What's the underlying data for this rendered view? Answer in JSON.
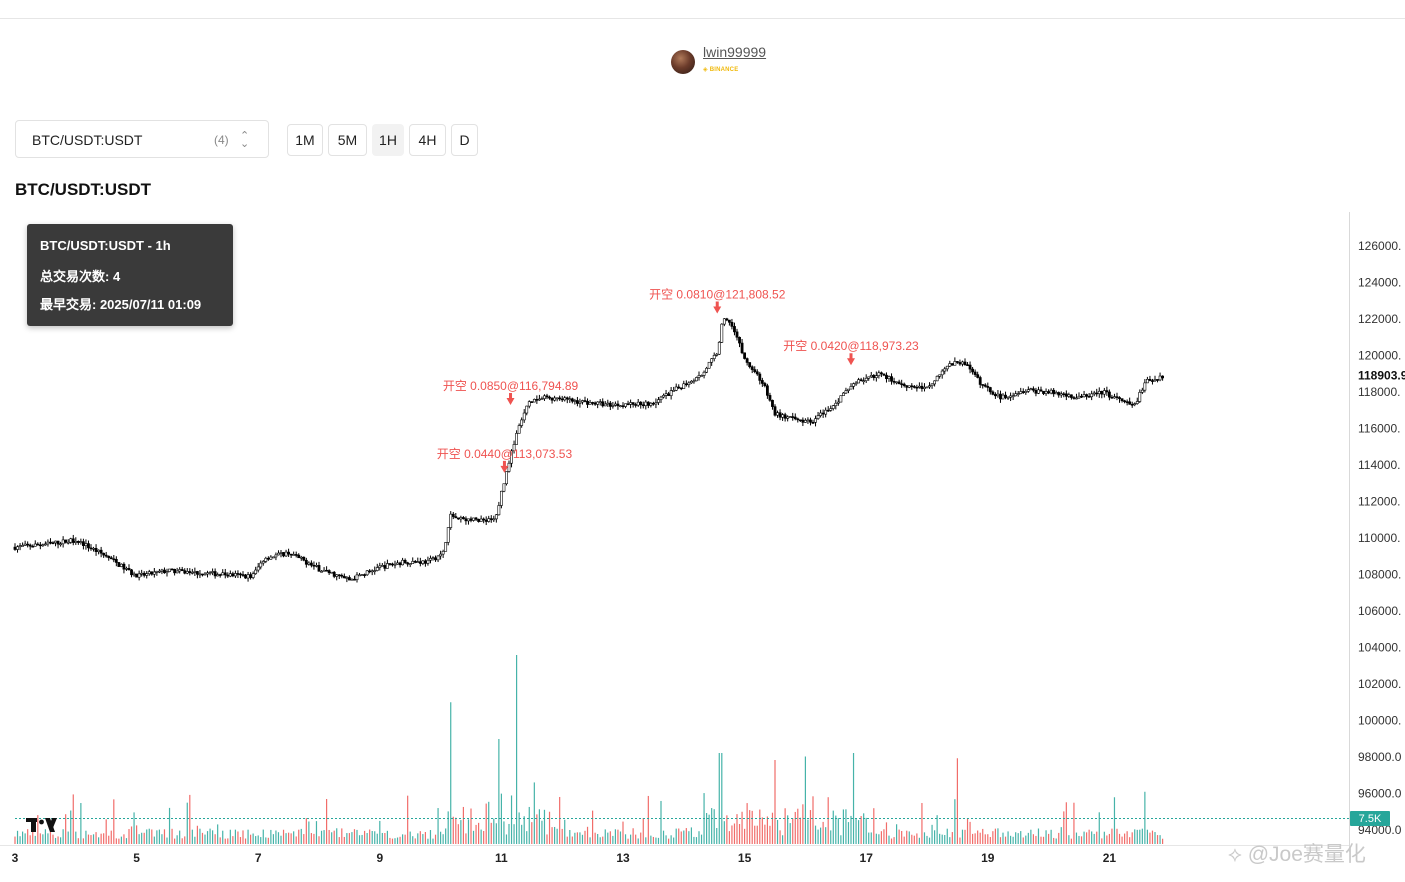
{
  "user": {
    "name": "lwin99999",
    "exchange": "BINANCE"
  },
  "symbol_select": {
    "value": "BTC/USDT:USDT",
    "count": "(4)"
  },
  "timeframes": [
    {
      "label": "1M",
      "active": false
    },
    {
      "label": "5M",
      "active": false
    },
    {
      "label": "1H",
      "active": true
    },
    {
      "label": "4H",
      "active": false
    },
    {
      "label": "D",
      "active": false
    }
  ],
  "page_title": "BTC/USDT:USDT",
  "tooltip": {
    "line1": "BTC/USDT:USDT - 1h",
    "line2": "总交易次数: 4",
    "line3": "最早交易: 2025/07/11 01:09"
  },
  "watermark": "@Joe赛量化",
  "colors": {
    "up_volume": "#26a69a",
    "down_volume": "#ef5350",
    "marker": "#ef5350",
    "price_badge": "#111111",
    "volume_badge": "#26a69a"
  },
  "chart_data": {
    "type": "candlestick",
    "interval": "1h",
    "x_tick_labels": [
      "3",
      "5",
      "7",
      "9",
      "11",
      "13",
      "15",
      "17",
      "19",
      "21"
    ],
    "y_tick_labels": [
      "126000.",
      "124000.",
      "122000.",
      "120000.",
      "118000.",
      "116000.",
      "114000.",
      "112000.",
      "110000.",
      "108000.",
      "106000.",
      "104000.",
      "102000.",
      "100000.",
      "98000.0",
      "96000.0",
      "94000.0"
    ],
    "ylim": [
      93600,
      127000
    ],
    "price_path": [
      {
        "day": 3.0,
        "price": 109500
      },
      {
        "day": 3.6,
        "price": 109700
      },
      {
        "day": 4.0,
        "price": 109900
      },
      {
        "day": 4.5,
        "price": 109000
      },
      {
        "day": 5.0,
        "price": 107900
      },
      {
        "day": 5.5,
        "price": 108200
      },
      {
        "day": 6.0,
        "price": 108100
      },
      {
        "day": 6.9,
        "price": 107900
      },
      {
        "day": 7.1,
        "price": 108900
      },
      {
        "day": 7.5,
        "price": 109200
      },
      {
        "day": 8.0,
        "price": 108300
      },
      {
        "day": 8.5,
        "price": 107700
      },
      {
        "day": 9.0,
        "price": 108400
      },
      {
        "day": 9.4,
        "price": 108700
      },
      {
        "day": 9.8,
        "price": 108700
      },
      {
        "day": 10.05,
        "price": 109200
      },
      {
        "day": 10.15,
        "price": 111200
      },
      {
        "day": 10.5,
        "price": 111000
      },
      {
        "day": 10.9,
        "price": 111000
      },
      {
        "day": 11.0,
        "price": 112500
      },
      {
        "day": 11.15,
        "price": 114500
      },
      {
        "day": 11.3,
        "price": 116200
      },
      {
        "day": 11.45,
        "price": 117400
      },
      {
        "day": 11.7,
        "price": 117700
      },
      {
        "day": 12.2,
        "price": 117500
      },
      {
        "day": 12.8,
        "price": 117300
      },
      {
        "day": 13.5,
        "price": 117400
      },
      {
        "day": 13.9,
        "price": 118200
      },
      {
        "day": 14.3,
        "price": 119000
      },
      {
        "day": 14.55,
        "price": 120200
      },
      {
        "day": 14.65,
        "price": 122100
      },
      {
        "day": 14.8,
        "price": 121700
      },
      {
        "day": 15.0,
        "price": 119800
      },
      {
        "day": 15.3,
        "price": 118500
      },
      {
        "day": 15.5,
        "price": 116800
      },
      {
        "day": 15.8,
        "price": 116500
      },
      {
        "day": 16.1,
        "price": 116400
      },
      {
        "day": 16.5,
        "price": 117400
      },
      {
        "day": 16.8,
        "price": 118500
      },
      {
        "day": 17.2,
        "price": 119000
      },
      {
        "day": 17.6,
        "price": 118400
      },
      {
        "day": 18.0,
        "price": 118200
      },
      {
        "day": 18.3,
        "price": 119400
      },
      {
        "day": 18.6,
        "price": 119700
      },
      {
        "day": 18.9,
        "price": 118400
      },
      {
        "day": 19.2,
        "price": 117700
      },
      {
        "day": 19.6,
        "price": 118100
      },
      {
        "day": 20.0,
        "price": 118000
      },
      {
        "day": 20.5,
        "price": 117700
      },
      {
        "day": 20.9,
        "price": 118000
      },
      {
        "day": 21.2,
        "price": 117500
      },
      {
        "day": 21.4,
        "price": 117200
      },
      {
        "day": 21.6,
        "price": 118600
      },
      {
        "day": 21.9,
        "price": 118900
      }
    ],
    "volume_spikes": [
      {
        "day": 10.15,
        "value": 81
      },
      {
        "day": 10.95,
        "value": 60
      },
      {
        "day": 11.25,
        "value": 108
      },
      {
        "day": 14.6,
        "value": 52
      },
      {
        "day": 15.5,
        "value": 48
      },
      {
        "day": 16.0,
        "value": 50
      },
      {
        "day": 16.8,
        "value": 52
      },
      {
        "day": 18.5,
        "value": 49
      }
    ],
    "markers": [
      {
        "label": "开空 0.0440@113,073.53",
        "day": 11.05,
        "price": 113073.53
      },
      {
        "label": "开空 0.0850@116,794.89",
        "day": 11.15,
        "price": 116794.89
      },
      {
        "label": "开空 0.0810@121,808.52",
        "day": 14.55,
        "price": 121808.52
      },
      {
        "label": "开空 0.0420@118,973.23",
        "day": 16.75,
        "price": 118973.23
      }
    ],
    "last_price_label": "118903.9",
    "volume_label": "7.5K",
    "grid": false
  }
}
